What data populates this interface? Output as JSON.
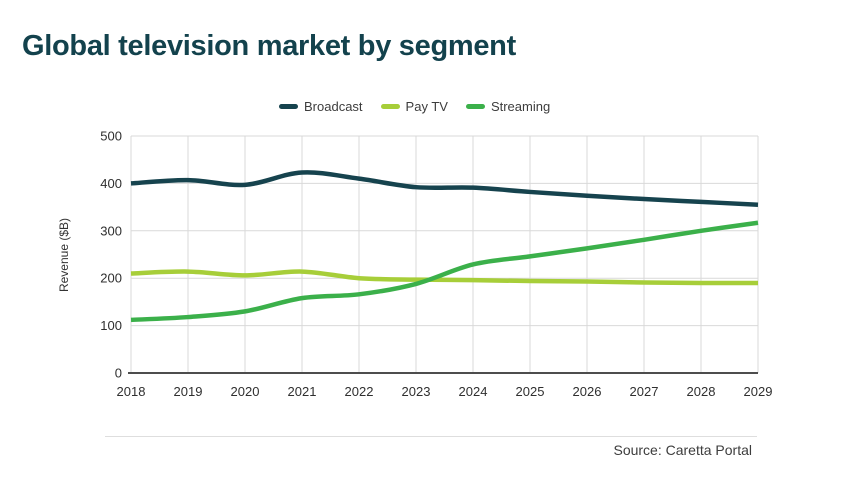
{
  "page": {
    "title": "Global television market by segment",
    "source_note": "Source: Caretta Portal"
  },
  "chart_data": {
    "type": "line",
    "title": "Global television market by segment",
    "x": [
      2018,
      2019,
      2020,
      2021,
      2022,
      2023,
      2024,
      2025,
      2026,
      2027,
      2028,
      2029
    ],
    "series": [
      {
        "name": "Broadcast",
        "color": "#16434e",
        "values": [
          400,
          407,
          397,
          423,
          410,
          392,
          391,
          382,
          374,
          367,
          361,
          355
        ]
      },
      {
        "name": "Pay TV",
        "color": "#a7ce39",
        "values": [
          210,
          214,
          206,
          214,
          200,
          197,
          196,
          194,
          193,
          191,
          190,
          190
        ]
      },
      {
        "name": "Streaming",
        "color": "#3bb04a",
        "values": [
          112,
          118,
          130,
          158,
          166,
          188,
          229,
          246,
          263,
          281,
          300,
          317
        ]
      }
    ],
    "xlabel": "",
    "ylabel": "Revenue ($B)",
    "ylim": [
      0,
      500
    ],
    "yticks": [
      0,
      100,
      200,
      300,
      400,
      500
    ],
    "grid": true,
    "legend_position": "top-center",
    "colors": {
      "title": "#13424d",
      "gridline": "#d9d9d9",
      "axis_line": "#4d4d4d",
      "tick_text": "#2f2f2f",
      "background": "#ffffff"
    }
  }
}
